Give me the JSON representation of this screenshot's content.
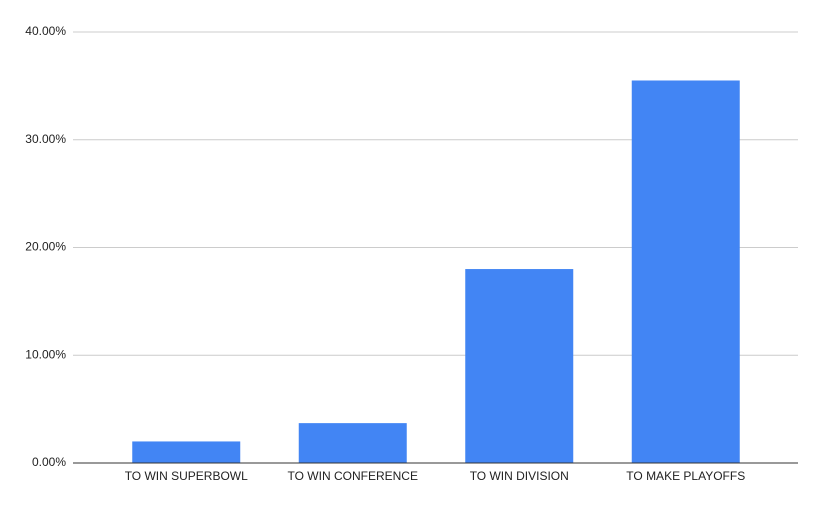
{
  "chart_data": {
    "type": "bar",
    "categories": [
      "TO WIN SUPERBOWL",
      "TO WIN CONFERENCE",
      "TO WIN DIVISION",
      "TO MAKE PLAYOFFS"
    ],
    "values": [
      2.0,
      3.7,
      18.0,
      35.5
    ],
    "color": "#4285f4",
    "ylim": [
      0,
      40
    ],
    "yticks": [
      {
        "value": 0,
        "label": "0.00%"
      },
      {
        "value": 10,
        "label": "10.00%"
      },
      {
        "value": 20,
        "label": "20.00%"
      },
      {
        "value": 30,
        "label": "30.00%"
      },
      {
        "value": 40,
        "label": "40.00%"
      }
    ],
    "grid": true
  }
}
